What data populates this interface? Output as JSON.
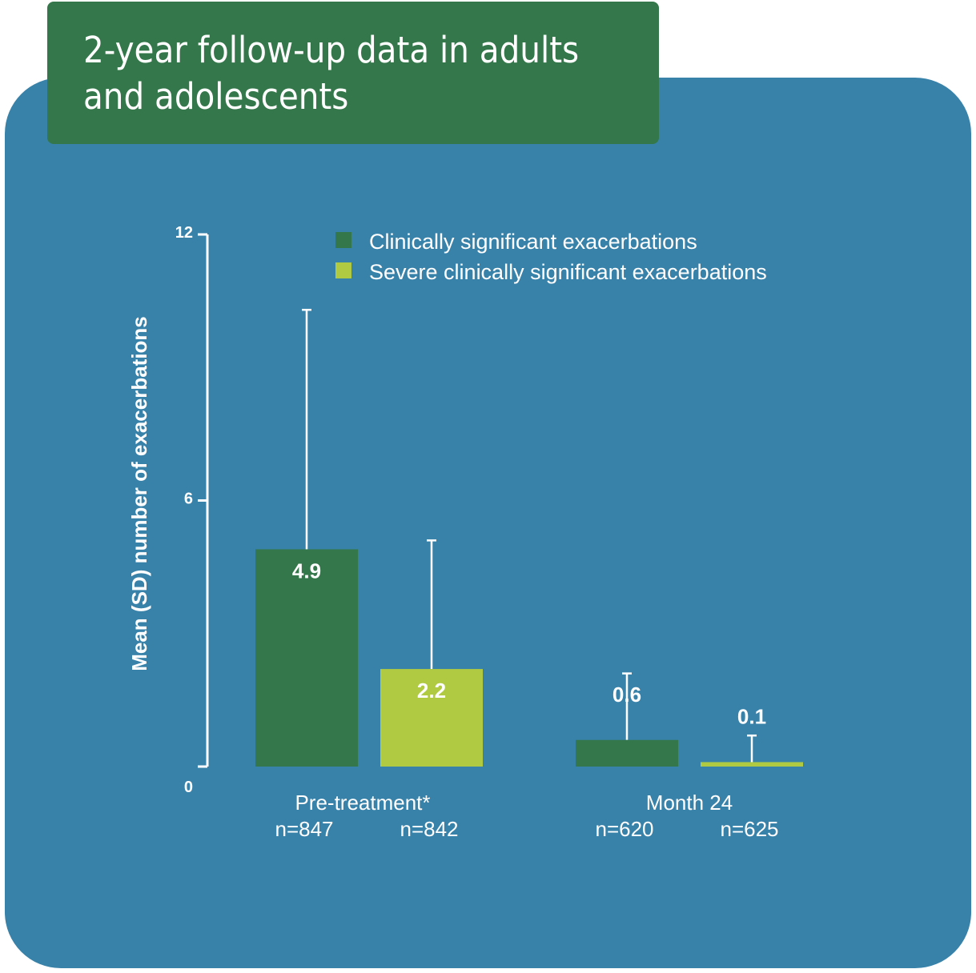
{
  "title": {
    "line1": "2-year follow-up data in adults",
    "line2": "and adolescents"
  },
  "colors": {
    "panel": "#3882aa",
    "title_box": "#33774a",
    "series_clinical": "#33774a",
    "series_severe": "#b0cb42",
    "text": "#ffffff"
  },
  "chart_data": {
    "type": "bar",
    "ylabel": "Mean (SD) number of exacerbations",
    "ylim": [
      0,
      12
    ],
    "yticks": [
      "0",
      "6",
      "12"
    ],
    "legend_position": "top",
    "categories": [
      {
        "label": "Pre-treatment*",
        "n": [
          "n=847",
          "n=842"
        ]
      },
      {
        "label": "Month 24",
        "n": [
          "n=620",
          "n=625"
        ]
      }
    ],
    "series": [
      {
        "name": "Clinically significant exacerbations",
        "values": [
          4.9,
          0.6
        ],
        "labels": [
          "4.9",
          "0.6"
        ],
        "sd_upper": [
          10.3,
          2.1
        ]
      },
      {
        "name": "Severe clinically significant exacerbations",
        "values": [
          2.2,
          0.1
        ],
        "labels": [
          "2.2",
          "0.1"
        ],
        "sd_upper": [
          5.1,
          0.7
        ]
      }
    ]
  }
}
